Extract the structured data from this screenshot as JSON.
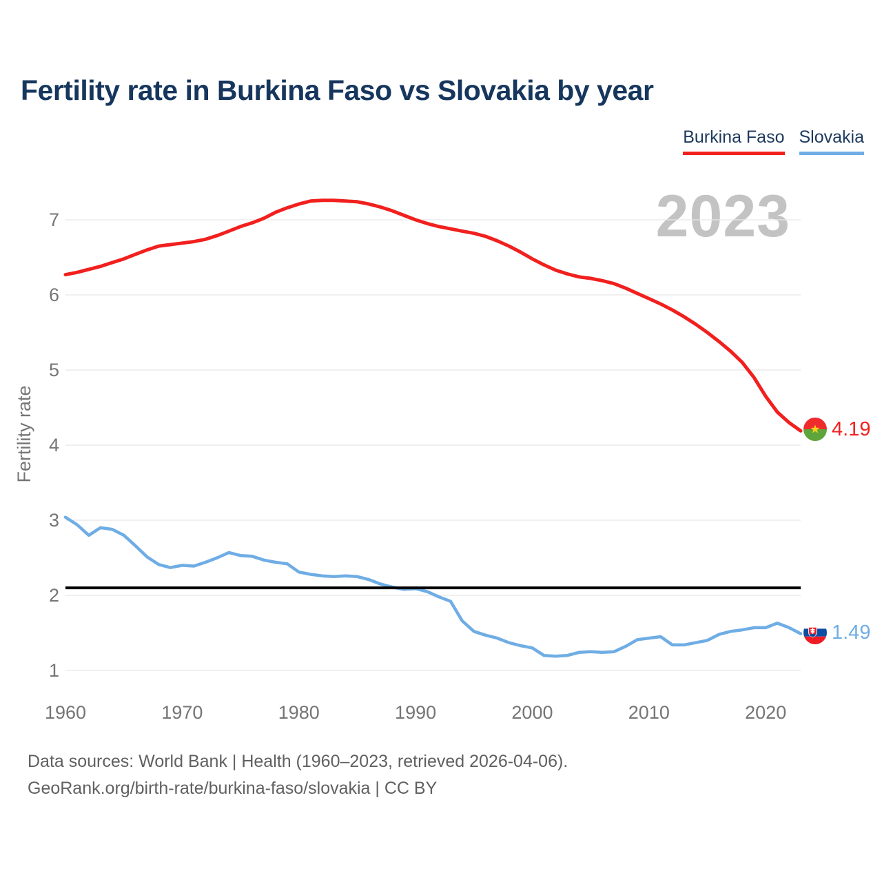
{
  "header": {
    "title": "Fertility rate in Burkina Faso vs Slovakia by year"
  },
  "legend": [
    {
      "label": "Burkina Faso",
      "color": "#f1201e"
    },
    {
      "label": "Slovakia",
      "color": "#6fade4"
    }
  ],
  "watermark": "2023",
  "chart_data": {
    "type": "line",
    "title": "Fertility rate in Burkina Faso vs Slovakia by year",
    "xlabel": "",
    "ylabel": "Fertility rate",
    "ylim": [
      0.7,
      7.6
    ],
    "xlim": [
      1960,
      2023
    ],
    "grid": "horizontal",
    "legend_position": "top-right",
    "y_ticks": [
      1,
      2,
      3,
      4,
      5,
      6,
      7
    ],
    "x_ticks": [
      1960,
      1970,
      1980,
      1990,
      2000,
      2010,
      2020
    ],
    "x": [
      1960,
      1961,
      1962,
      1963,
      1964,
      1965,
      1966,
      1967,
      1968,
      1969,
      1970,
      1971,
      1972,
      1973,
      1974,
      1975,
      1976,
      1977,
      1978,
      1979,
      1980,
      1981,
      1982,
      1983,
      1984,
      1985,
      1986,
      1987,
      1988,
      1989,
      1990,
      1991,
      1992,
      1993,
      1994,
      1995,
      1996,
      1997,
      1998,
      1999,
      2000,
      2001,
      2002,
      2003,
      2004,
      2005,
      2006,
      2007,
      2008,
      2009,
      2010,
      2011,
      2012,
      2013,
      2014,
      2015,
      2016,
      2017,
      2018,
      2019,
      2020,
      2021,
      2022,
      2023
    ],
    "series": [
      {
        "name": "Burkina Faso",
        "color": "#f1201e",
        "end_value_label": "4.19",
        "values": [
          6.27,
          6.3,
          6.34,
          6.38,
          6.43,
          6.48,
          6.54,
          6.6,
          6.65,
          6.67,
          6.69,
          6.71,
          6.74,
          6.79,
          6.85,
          6.91,
          6.96,
          7.02,
          7.1,
          7.16,
          7.21,
          7.25,
          7.26,
          7.26,
          7.25,
          7.24,
          7.21,
          7.17,
          7.12,
          7.06,
          7.0,
          6.95,
          6.91,
          6.88,
          6.85,
          6.82,
          6.78,
          6.72,
          6.65,
          6.57,
          6.48,
          6.4,
          6.33,
          6.28,
          6.24,
          6.22,
          6.19,
          6.15,
          6.09,
          6.02,
          5.95,
          5.88,
          5.8,
          5.71,
          5.61,
          5.5,
          5.38,
          5.25,
          5.1,
          4.9,
          4.65,
          4.44,
          4.3,
          4.19
        ]
      },
      {
        "name": "Slovakia",
        "color": "#6fade4",
        "end_value_label": "1.49",
        "values": [
          3.04,
          2.94,
          2.8,
          2.9,
          2.88,
          2.8,
          2.66,
          2.51,
          2.41,
          2.37,
          2.4,
          2.39,
          2.44,
          2.5,
          2.57,
          2.53,
          2.52,
          2.47,
          2.44,
          2.42,
          2.31,
          2.28,
          2.26,
          2.25,
          2.26,
          2.25,
          2.21,
          2.15,
          2.11,
          2.08,
          2.09,
          2.05,
          1.98,
          1.92,
          1.66,
          1.52,
          1.47,
          1.43,
          1.37,
          1.33,
          1.3,
          1.2,
          1.19,
          1.2,
          1.24,
          1.25,
          1.24,
          1.25,
          1.32,
          1.41,
          1.43,
          1.45,
          1.34,
          1.34,
          1.37,
          1.4,
          1.48,
          1.52,
          1.54,
          1.57,
          1.57,
          1.63,
          1.57,
          1.49
        ]
      }
    ],
    "reference_line": {
      "value": 2.1,
      "color": "#000000"
    }
  },
  "end_labels": {
    "burkina_faso": {
      "value": "4.19",
      "flag": "burkina-faso-flag"
    },
    "slovakia": {
      "value": "1.49",
      "flag": "slovakia-flag"
    }
  },
  "footer": {
    "line1": "Data sources: World Bank | Health (1960–2023, retrieved 2026-04-06).",
    "line2": "GeoRank.org/birth-rate/burkina-faso/slovakia | CC BY"
  }
}
